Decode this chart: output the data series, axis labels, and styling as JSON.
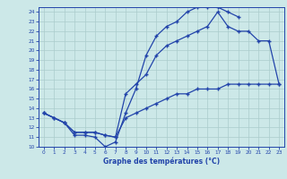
{
  "title": "Graphe des températures (°C)",
  "bg_color": "#cce8e8",
  "grid_color": "#aacccc",
  "line_color": "#2244aa",
  "x_min": 0,
  "x_max": 23,
  "y_min": 10,
  "y_max": 24,
  "curve1_x": [
    0,
    1,
    2,
    3,
    4,
    5,
    6,
    7,
    8,
    9,
    10,
    11,
    12,
    13,
    14,
    15,
    16,
    17,
    18,
    19
  ],
  "curve1_y": [
    13.5,
    13.0,
    12.5,
    11.2,
    11.2,
    11.0,
    10.0,
    10.5,
    13.5,
    16.0,
    19.5,
    21.5,
    22.5,
    23.0,
    24.0,
    24.5,
    24.5,
    24.5,
    24.0,
    23.5
  ],
  "curve2_x": [
    0,
    2,
    3,
    4,
    5,
    6,
    7,
    8,
    9,
    10,
    11,
    12,
    13,
    14,
    15,
    16,
    17,
    18,
    19,
    20,
    21,
    22,
    23
  ],
  "curve2_y": [
    13.5,
    12.5,
    11.5,
    11.5,
    11.5,
    11.2,
    11.0,
    15.5,
    16.5,
    17.5,
    19.5,
    20.5,
    21.0,
    21.5,
    22.0,
    22.5,
    24.0,
    22.5,
    22.0,
    22.0,
    21.0,
    21.0,
    16.5
  ],
  "curve3_x": [
    0,
    1,
    2,
    3,
    4,
    5,
    6,
    7,
    8,
    9,
    10,
    11,
    12,
    13,
    14,
    15,
    16,
    17,
    18,
    19,
    20,
    21,
    22,
    23
  ],
  "curve3_y": [
    13.5,
    13.0,
    12.5,
    11.5,
    11.5,
    11.5,
    11.2,
    11.0,
    13.0,
    13.5,
    14.0,
    14.5,
    15.0,
    15.5,
    15.5,
    16.0,
    16.0,
    16.0,
    16.5,
    16.5,
    16.5,
    16.5,
    16.5,
    16.5
  ]
}
